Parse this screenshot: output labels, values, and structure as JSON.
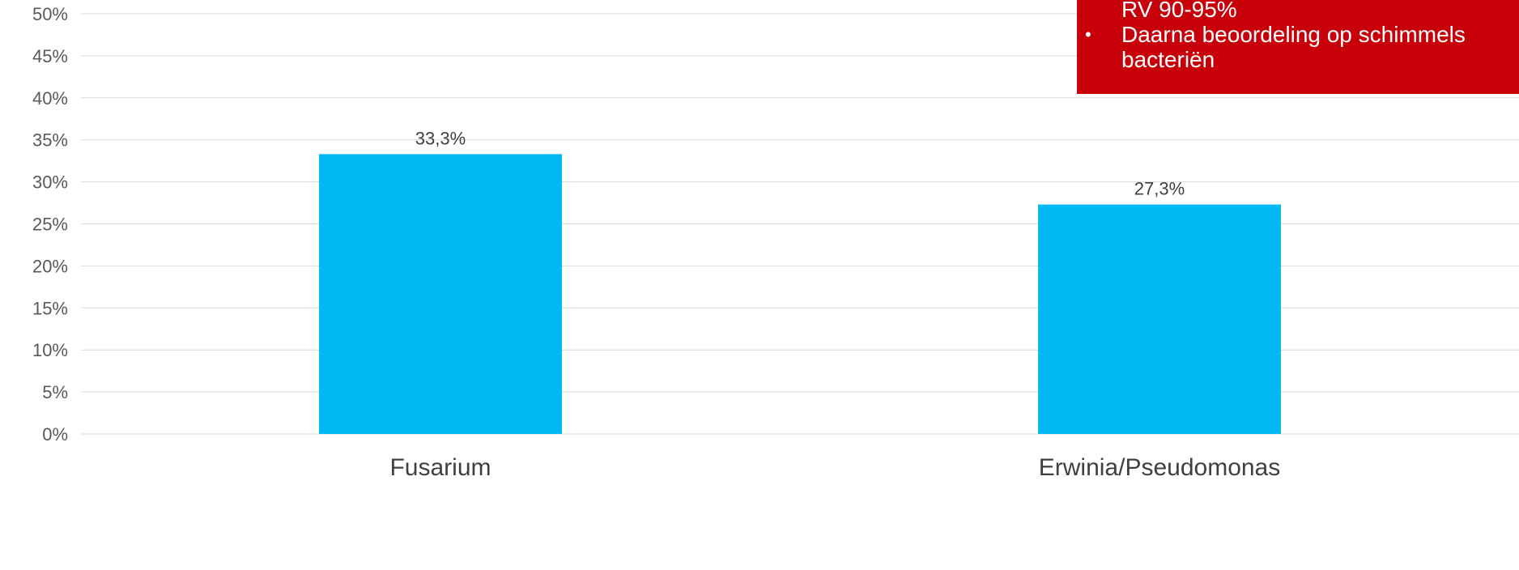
{
  "chart_data": {
    "type": "bar",
    "categories": [
      "Fusarium",
      "Erwinia/Pseudomonas"
    ],
    "values": [
      33.3,
      27.3
    ],
    "data_labels": [
      "33,3%",
      "27,3%"
    ],
    "y_ticks": [
      "0%",
      "5%",
      "10%",
      "15%",
      "20%",
      "25%",
      "30%",
      "35%",
      "40%",
      "45%",
      "50%"
    ],
    "ylim": [
      0,
      50
    ],
    "grid": true,
    "bar_color": "#00b8f4"
  },
  "callout": {
    "background": "#c8000a",
    "lines": [
      {
        "bullet": "",
        "text": "RV 90-95%"
      },
      {
        "bullet": "•",
        "text": "Daarna beoordeling op schimmels"
      },
      {
        "bullet": "",
        "text": "bacteriën"
      }
    ]
  }
}
